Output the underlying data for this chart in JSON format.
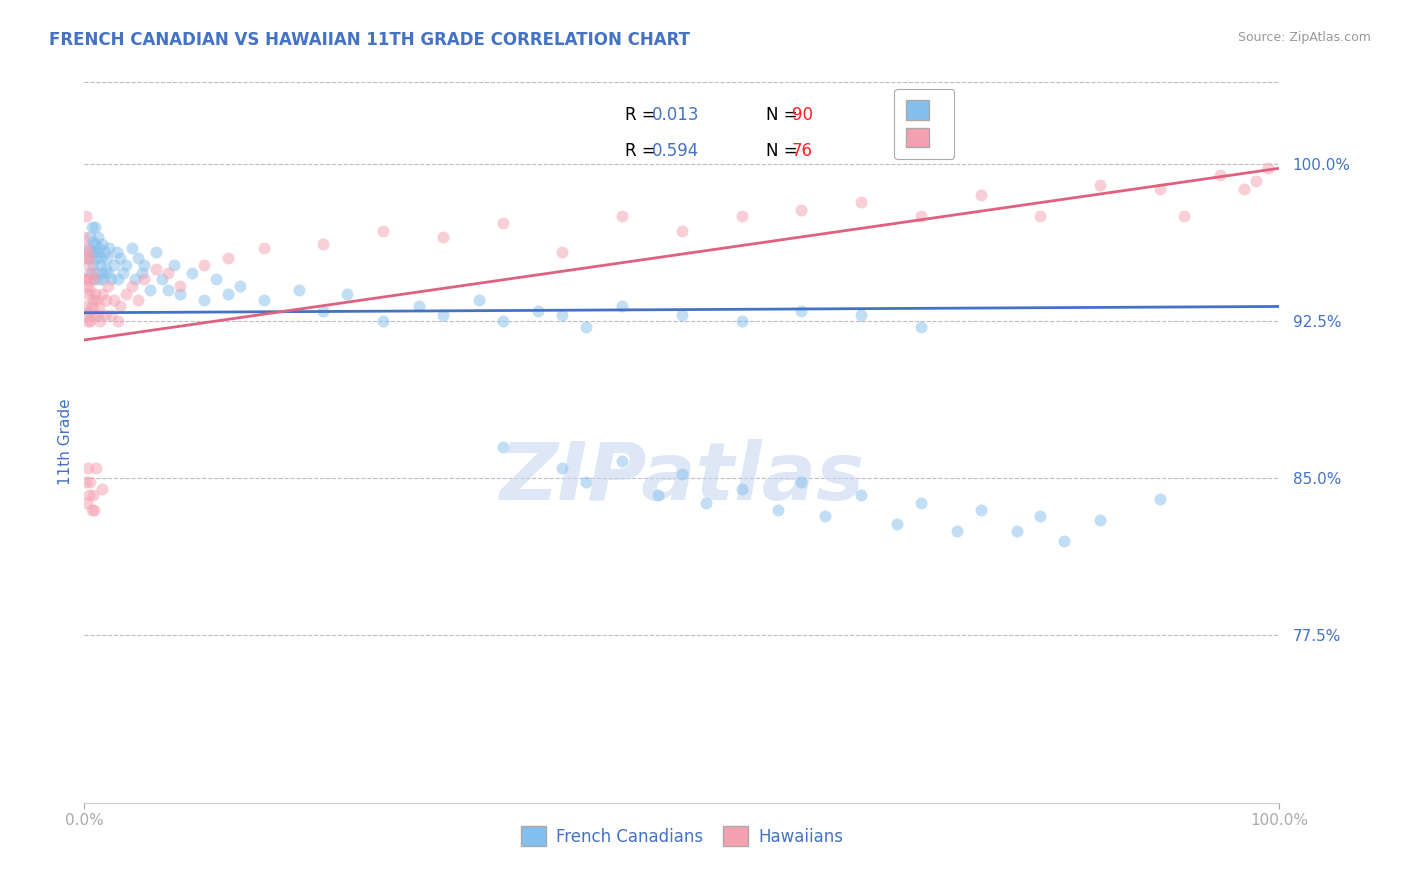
{
  "title": "FRENCH CANADIAN VS HAWAIIAN 11TH GRADE CORRELATION CHART",
  "source_text": "Source: ZipAtlas.com",
  "ylabel": "11th Grade",
  "y_tick_values": [
    0.775,
    0.85,
    0.925,
    1.0
  ],
  "y_tick_labels": [
    "77.5%",
    "85.0%",
    "92.5%",
    "100.0%"
  ],
  "xlim": [
    0.0,
    1.0
  ],
  "ylim": [
    0.695,
    1.04
  ],
  "blue_color": "#85BFED",
  "pink_color": "#F4A0B0",
  "blue_line_color": "#4472C4",
  "pink_line_color": "#E06080",
  "title_color": "#4472C4",
  "axis_label_color": "#4472C4",
  "tick_label_color": "#4472C4",
  "grid_color": "#BBBBCC",
  "source_color": "#999999",
  "watermark_color": "#C8D8F0",
  "scatter_alpha": 0.5,
  "marker_size": 75,
  "blue_line_slope": 0.003,
  "blue_line_intercept": 0.929,
  "pink_line_start_y": 0.916,
  "pink_line_end_y": 0.998,
  "blue_scatter_x": [
    0.003,
    0.004,
    0.005,
    0.005,
    0.006,
    0.006,
    0.007,
    0.007,
    0.008,
    0.008,
    0.009,
    0.009,
    0.01,
    0.01,
    0.011,
    0.011,
    0.012,
    0.012,
    0.013,
    0.014,
    0.015,
    0.015,
    0.016,
    0.017,
    0.018,
    0.019,
    0.02,
    0.021,
    0.022,
    0.025,
    0.027,
    0.028,
    0.03,
    0.032,
    0.035,
    0.04,
    0.042,
    0.045,
    0.048,
    0.05,
    0.055,
    0.06,
    0.065,
    0.07,
    0.075,
    0.08,
    0.09,
    0.1,
    0.11,
    0.12,
    0.13,
    0.15,
    0.18,
    0.2,
    0.22,
    0.25,
    0.28,
    0.3,
    0.33,
    0.35,
    0.38,
    0.4,
    0.42,
    0.45,
    0.5,
    0.55,
    0.6,
    0.65,
    0.7,
    0.35,
    0.4,
    0.42,
    0.45,
    0.48,
    0.5,
    0.52,
    0.55,
    0.58,
    0.6,
    0.62,
    0.65,
    0.68,
    0.7,
    0.73,
    0.75,
    0.78,
    0.8,
    0.82,
    0.85,
    0.9
  ],
  "blue_scatter_y": [
    0.955,
    0.96,
    0.948,
    0.965,
    0.958,
    0.97,
    0.952,
    0.963,
    0.958,
    0.945,
    0.962,
    0.97,
    0.955,
    0.948,
    0.965,
    0.958,
    0.96,
    0.945,
    0.952,
    0.955,
    0.948,
    0.962,
    0.945,
    0.958,
    0.95,
    0.955,
    0.948,
    0.96,
    0.945,
    0.952,
    0.958,
    0.945,
    0.955,
    0.948,
    0.952,
    0.96,
    0.945,
    0.955,
    0.948,
    0.952,
    0.94,
    0.958,
    0.945,
    0.94,
    0.952,
    0.938,
    0.948,
    0.935,
    0.945,
    0.938,
    0.942,
    0.935,
    0.94,
    0.93,
    0.938,
    0.925,
    0.932,
    0.928,
    0.935,
    0.925,
    0.93,
    0.928,
    0.922,
    0.932,
    0.928,
    0.925,
    0.93,
    0.928,
    0.922,
    0.865,
    0.855,
    0.848,
    0.858,
    0.842,
    0.852,
    0.838,
    0.845,
    0.835,
    0.848,
    0.832,
    0.842,
    0.828,
    0.838,
    0.825,
    0.835,
    0.825,
    0.832,
    0.82,
    0.83,
    0.84
  ],
  "pink_scatter_x": [
    0.0,
    0.0,
    0.0,
    0.001,
    0.001,
    0.001,
    0.001,
    0.002,
    0.002,
    0.002,
    0.003,
    0.003,
    0.003,
    0.004,
    0.004,
    0.005,
    0.005,
    0.005,
    0.006,
    0.006,
    0.007,
    0.008,
    0.008,
    0.009,
    0.01,
    0.011,
    0.012,
    0.013,
    0.015,
    0.017,
    0.018,
    0.02,
    0.022,
    0.025,
    0.028,
    0.03,
    0.035,
    0.04,
    0.045,
    0.05,
    0.06,
    0.07,
    0.08,
    0.1,
    0.12,
    0.15,
    0.2,
    0.25,
    0.3,
    0.35,
    0.4,
    0.45,
    0.5,
    0.55,
    0.6,
    0.65,
    0.7,
    0.75,
    0.8,
    0.85,
    0.9,
    0.92,
    0.95,
    0.97,
    0.98,
    0.99,
    0.001,
    0.002,
    0.003,
    0.004,
    0.005,
    0.006,
    0.007,
    0.008,
    0.01,
    0.015
  ],
  "pink_scatter_y": [
    0.965,
    0.955,
    0.945,
    0.975,
    0.96,
    0.945,
    0.932,
    0.958,
    0.942,
    0.928,
    0.952,
    0.938,
    0.925,
    0.945,
    0.93,
    0.955,
    0.94,
    0.925,
    0.948,
    0.932,
    0.935,
    0.945,
    0.928,
    0.938,
    0.935,
    0.928,
    0.932,
    0.925,
    0.938,
    0.928,
    0.935,
    0.942,
    0.928,
    0.935,
    0.925,
    0.932,
    0.938,
    0.942,
    0.935,
    0.945,
    0.95,
    0.948,
    0.942,
    0.952,
    0.955,
    0.96,
    0.962,
    0.968,
    0.965,
    0.972,
    0.958,
    0.975,
    0.968,
    0.975,
    0.978,
    0.982,
    0.975,
    0.985,
    0.975,
    0.99,
    0.988,
    0.975,
    0.995,
    0.988,
    0.992,
    0.998,
    0.848,
    0.838,
    0.855,
    0.842,
    0.848,
    0.835,
    0.842,
    0.835,
    0.855,
    0.845
  ]
}
